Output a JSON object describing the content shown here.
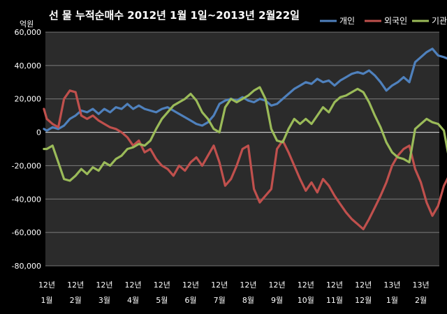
{
  "chart_data": {
    "type": "line",
    "title": "선 물 누적순매수 2012년 1월 1일~2013년 2월22일",
    "ylabel_unit": "억원",
    "ylim": [
      -80000,
      60000
    ],
    "yticks": [
      "60,000",
      "40,000",
      "20,000",
      "0",
      "-20,000",
      "-40,000",
      "-60,000",
      "-80,000"
    ],
    "ytick_values": [
      60000,
      40000,
      20000,
      0,
      -20000,
      -40000,
      -60000,
      -80000
    ],
    "categories": [
      [
        "12년",
        "1월"
      ],
      [
        "12년",
        "2월"
      ],
      [
        "12년",
        "3월"
      ],
      [
        "12년",
        "4월"
      ],
      [
        "12년",
        "5월"
      ],
      [
        "12년",
        "6월"
      ],
      [
        "12년",
        "7월"
      ],
      [
        "12년",
        "8월"
      ],
      [
        "12년",
        "9월"
      ],
      [
        "12년",
        "10월"
      ],
      [
        "12년",
        "11월"
      ],
      [
        "12년",
        "12월"
      ],
      [
        "13년",
        "1월"
      ],
      [
        "13년",
        "2월"
      ]
    ],
    "category_t": [
      0,
      1,
      2,
      3,
      4,
      5,
      6,
      7,
      8,
      9,
      10,
      11,
      12,
      13
    ],
    "grid": true,
    "legend_position": "top-right",
    "series": [
      {
        "name": "개인",
        "color": "#4F81BD",
        "points": [
          [
            -0.1,
            2000
          ],
          [
            0.0,
            1000
          ],
          [
            0.2,
            3000
          ],
          [
            0.4,
            2000
          ],
          [
            0.6,
            4000
          ],
          [
            0.8,
            8000
          ],
          [
            1.0,
            10000
          ],
          [
            1.2,
            13000
          ],
          [
            1.4,
            12000
          ],
          [
            1.6,
            14000
          ],
          [
            1.8,
            11000
          ],
          [
            2.0,
            14000
          ],
          [
            2.2,
            12000
          ],
          [
            2.4,
            15000
          ],
          [
            2.6,
            14000
          ],
          [
            2.8,
            17000
          ],
          [
            3.0,
            14000
          ],
          [
            3.2,
            16000
          ],
          [
            3.4,
            14000
          ],
          [
            3.6,
            13000
          ],
          [
            3.8,
            12000
          ],
          [
            4.0,
            14000
          ],
          [
            4.2,
            15000
          ],
          [
            4.4,
            13000
          ],
          [
            4.6,
            11000
          ],
          [
            4.8,
            9000
          ],
          [
            5.0,
            7000
          ],
          [
            5.2,
            5000
          ],
          [
            5.4,
            4000
          ],
          [
            5.6,
            6000
          ],
          [
            5.8,
            10000
          ],
          [
            6.0,
            17000
          ],
          [
            6.2,
            19000
          ],
          [
            6.4,
            20000
          ],
          [
            6.6,
            19000
          ],
          [
            6.8,
            21000
          ],
          [
            7.0,
            19000
          ],
          [
            7.2,
            18000
          ],
          [
            7.4,
            20000
          ],
          [
            7.6,
            19000
          ],
          [
            7.8,
            16000
          ],
          [
            8.0,
            17000
          ],
          [
            8.2,
            20000
          ],
          [
            8.4,
            23000
          ],
          [
            8.6,
            26000
          ],
          [
            8.8,
            28000
          ],
          [
            9.0,
            30000
          ],
          [
            9.2,
            29000
          ],
          [
            9.4,
            32000
          ],
          [
            9.6,
            30000
          ],
          [
            9.8,
            31000
          ],
          [
            10.0,
            28000
          ],
          [
            10.2,
            31000
          ],
          [
            10.4,
            33000
          ],
          [
            10.6,
            35000
          ],
          [
            10.8,
            36000
          ],
          [
            11.0,
            35000
          ],
          [
            11.2,
            37000
          ],
          [
            11.4,
            34000
          ],
          [
            11.6,
            30000
          ],
          [
            11.8,
            25000
          ],
          [
            12.0,
            28000
          ],
          [
            12.2,
            30000
          ],
          [
            12.4,
            33000
          ],
          [
            12.6,
            30000
          ],
          [
            12.8,
            42000
          ],
          [
            13.0,
            45000
          ],
          [
            13.2,
            48000
          ],
          [
            13.4,
            50000
          ],
          [
            13.6,
            46000
          ],
          [
            13.8,
            45000
          ],
          [
            13.95,
            44000
          ]
        ]
      },
      {
        "name": "외국인",
        "color": "#C0504D",
        "points": [
          [
            -0.1,
            14000
          ],
          [
            0.0,
            8000
          ],
          [
            0.2,
            5000
          ],
          [
            0.4,
            3000
          ],
          [
            0.6,
            20000
          ],
          [
            0.8,
            25000
          ],
          [
            1.0,
            24000
          ],
          [
            1.2,
            10000
          ],
          [
            1.4,
            8000
          ],
          [
            1.6,
            10000
          ],
          [
            1.8,
            7000
          ],
          [
            2.0,
            5000
          ],
          [
            2.2,
            3000
          ],
          [
            2.4,
            2000
          ],
          [
            2.6,
            0
          ],
          [
            2.8,
            -3000
          ],
          [
            3.0,
            -8000
          ],
          [
            3.2,
            -5000
          ],
          [
            3.4,
            -12000
          ],
          [
            3.6,
            -10000
          ],
          [
            3.8,
            -16000
          ],
          [
            4.0,
            -20000
          ],
          [
            4.2,
            -22000
          ],
          [
            4.4,
            -26000
          ],
          [
            4.6,
            -20000
          ],
          [
            4.8,
            -23000
          ],
          [
            5.0,
            -18000
          ],
          [
            5.2,
            -15000
          ],
          [
            5.4,
            -20000
          ],
          [
            5.6,
            -14000
          ],
          [
            5.8,
            -8000
          ],
          [
            6.0,
            -18000
          ],
          [
            6.2,
            -32000
          ],
          [
            6.4,
            -28000
          ],
          [
            6.6,
            -20000
          ],
          [
            6.8,
            -10000
          ],
          [
            7.0,
            -8000
          ],
          [
            7.2,
            -34000
          ],
          [
            7.4,
            -42000
          ],
          [
            7.6,
            -38000
          ],
          [
            7.8,
            -34000
          ],
          [
            8.0,
            -10000
          ],
          [
            8.2,
            -5000
          ],
          [
            8.4,
            -12000
          ],
          [
            8.6,
            -20000
          ],
          [
            8.8,
            -28000
          ],
          [
            9.0,
            -35000
          ],
          [
            9.2,
            -30000
          ],
          [
            9.4,
            -36000
          ],
          [
            9.6,
            -28000
          ],
          [
            9.8,
            -32000
          ],
          [
            10.0,
            -38000
          ],
          [
            10.2,
            -43000
          ],
          [
            10.4,
            -48000
          ],
          [
            10.6,
            -52000
          ],
          [
            10.8,
            -55000
          ],
          [
            11.0,
            -58000
          ],
          [
            11.2,
            -52000
          ],
          [
            11.4,
            -45000
          ],
          [
            11.6,
            -38000
          ],
          [
            11.8,
            -30000
          ],
          [
            12.0,
            -20000
          ],
          [
            12.2,
            -14000
          ],
          [
            12.4,
            -10000
          ],
          [
            12.6,
            -8000
          ],
          [
            12.8,
            -22000
          ],
          [
            13.0,
            -30000
          ],
          [
            13.2,
            -42000
          ],
          [
            13.4,
            -50000
          ],
          [
            13.6,
            -44000
          ],
          [
            13.8,
            -32000
          ],
          [
            13.95,
            -27000
          ]
        ]
      },
      {
        "name": "기관",
        "color": "#9BBB59",
        "points": [
          [
            -0.1,
            -10000
          ],
          [
            0.0,
            -10000
          ],
          [
            0.2,
            -8000
          ],
          [
            0.4,
            -18000
          ],
          [
            0.6,
            -28000
          ],
          [
            0.8,
            -29000
          ],
          [
            1.0,
            -26000
          ],
          [
            1.2,
            -22000
          ],
          [
            1.4,
            -25000
          ],
          [
            1.6,
            -21000
          ],
          [
            1.8,
            -23000
          ],
          [
            2.0,
            -18000
          ],
          [
            2.2,
            -20000
          ],
          [
            2.4,
            -16000
          ],
          [
            2.6,
            -14000
          ],
          [
            2.8,
            -10000
          ],
          [
            3.0,
            -9000
          ],
          [
            3.2,
            -7000
          ],
          [
            3.4,
            -8000
          ],
          [
            3.6,
            -5000
          ],
          [
            3.8,
            2000
          ],
          [
            4.0,
            8000
          ],
          [
            4.2,
            12000
          ],
          [
            4.4,
            16000
          ],
          [
            4.6,
            18000
          ],
          [
            4.8,
            20000
          ],
          [
            5.0,
            23000
          ],
          [
            5.2,
            19000
          ],
          [
            5.4,
            12000
          ],
          [
            5.6,
            8000
          ],
          [
            5.8,
            2000
          ],
          [
            6.0,
            0
          ],
          [
            6.2,
            15000
          ],
          [
            6.4,
            20000
          ],
          [
            6.6,
            18000
          ],
          [
            6.8,
            20000
          ],
          [
            7.0,
            22000
          ],
          [
            7.2,
            25000
          ],
          [
            7.4,
            27000
          ],
          [
            7.6,
            20000
          ],
          [
            7.8,
            2000
          ],
          [
            8.0,
            -5000
          ],
          [
            8.2,
            -6000
          ],
          [
            8.4,
            2000
          ],
          [
            8.6,
            8000
          ],
          [
            8.8,
            5000
          ],
          [
            9.0,
            8000
          ],
          [
            9.2,
            5000
          ],
          [
            9.4,
            10000
          ],
          [
            9.6,
            15000
          ],
          [
            9.8,
            12000
          ],
          [
            10.0,
            18000
          ],
          [
            10.2,
            21000
          ],
          [
            10.4,
            22000
          ],
          [
            10.6,
            24000
          ],
          [
            10.8,
            26000
          ],
          [
            11.0,
            24000
          ],
          [
            11.2,
            18000
          ],
          [
            11.4,
            10000
          ],
          [
            11.6,
            3000
          ],
          [
            11.8,
            -6000
          ],
          [
            12.0,
            -12000
          ],
          [
            12.2,
            -15000
          ],
          [
            12.4,
            -16000
          ],
          [
            12.6,
            -18000
          ],
          [
            12.8,
            2000
          ],
          [
            13.0,
            5000
          ],
          [
            13.2,
            8000
          ],
          [
            13.4,
            6000
          ],
          [
            13.6,
            5000
          ],
          [
            13.8,
            1000
          ],
          [
            13.95,
            -13000
          ]
        ]
      }
    ]
  }
}
